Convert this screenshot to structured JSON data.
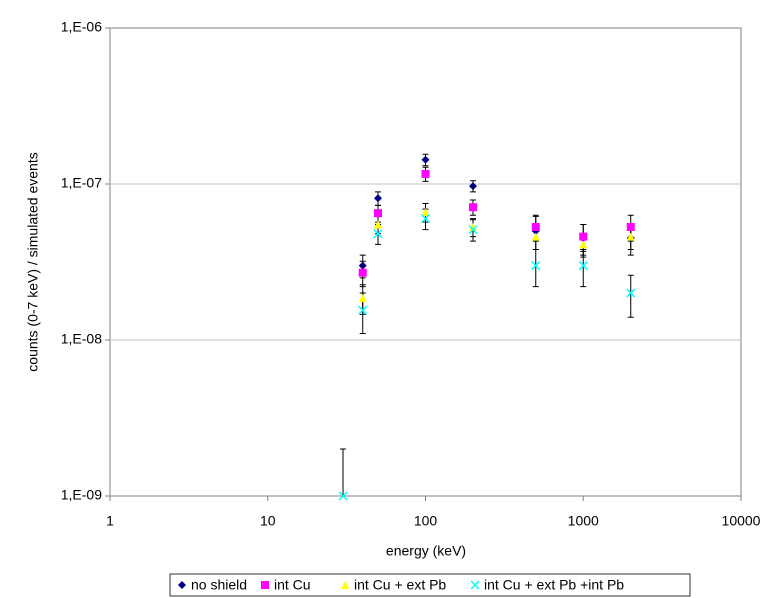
{
  "chart_data": {
    "type": "scatter",
    "x_label": "energy (keV)",
    "y_label": "counts (0-7 keV) / simulated events",
    "xlog": true,
    "ylog": true,
    "grid": true,
    "legend": "bottom",
    "xlim": [
      1,
      10000
    ],
    "xticks": [
      1,
      10,
      100,
      1000,
      10000
    ],
    "ylim": [
      1e-09,
      1e-06
    ],
    "yticks": [
      {
        "value": 1e-09,
        "label": "1,E-09"
      },
      {
        "value": 1e-08,
        "label": "1,E-08"
      },
      {
        "value": 1e-07,
        "label": "1,E-07"
      },
      {
        "value": 1e-06,
        "label": "1,E-06"
      }
    ],
    "series": [
      {
        "name": "no shield",
        "color": "#000080",
        "marker": "diamond",
        "x": [
          40,
          50,
          100,
          200,
          500,
          1000,
          2000
        ],
        "values": [
          3e-08,
          8.1e-08,
          1.43e-07,
          9.7e-08,
          5e-08,
          4.5e-08,
          4.5e-08
        ],
        "errors": [
          5e-09,
          8e-09,
          1.2e-08,
          8e-09,
          1.2e-08,
          1e-08,
          1e-08
        ]
      },
      {
        "name": "int Cu",
        "color": "#ff00ff",
        "marker": "square",
        "x": [
          40,
          50,
          100,
          200,
          500,
          1000,
          2000
        ],
        "values": [
          2.7e-08,
          6.5e-08,
          1.16e-07,
          7.1e-08,
          5.3e-08,
          4.6e-08,
          5.3e-08
        ],
        "errors": [
          5e-09,
          8e-09,
          1.2e-08,
          8e-09,
          1e-08,
          9e-09,
          1e-08
        ]
      },
      {
        "name": "int Cu + ext Pb",
        "color": "#ffff00",
        "marker": "triangle",
        "x": [
          40,
          50,
          100,
          200,
          500,
          1000,
          2000
        ],
        "values": [
          1.86e-08,
          5.5e-08,
          6.6e-08,
          5.3e-08,
          4.6e-08,
          4.1e-08,
          4.6e-08
        ],
        "errors": [
          4e-09,
          7e-09,
          9e-09,
          7e-09,
          8e-09,
          7e-09,
          8e-09
        ]
      },
      {
        "name": "int Cu + ext Pb +int Pb",
        "color": "#00ffff",
        "marker": "cross",
        "x": [
          30,
          40,
          50,
          100,
          200,
          500,
          1000,
          2000
        ],
        "values": [
          1e-09,
          1.55e-08,
          4.8e-08,
          6e-08,
          5.1e-08,
          3e-08,
          3e-08,
          2e-08
        ],
        "errors": [
          1e-09,
          4.5e-09,
          7e-09,
          9e-09,
          8e-09,
          8e-09,
          8e-09,
          6e-09
        ]
      }
    ]
  }
}
